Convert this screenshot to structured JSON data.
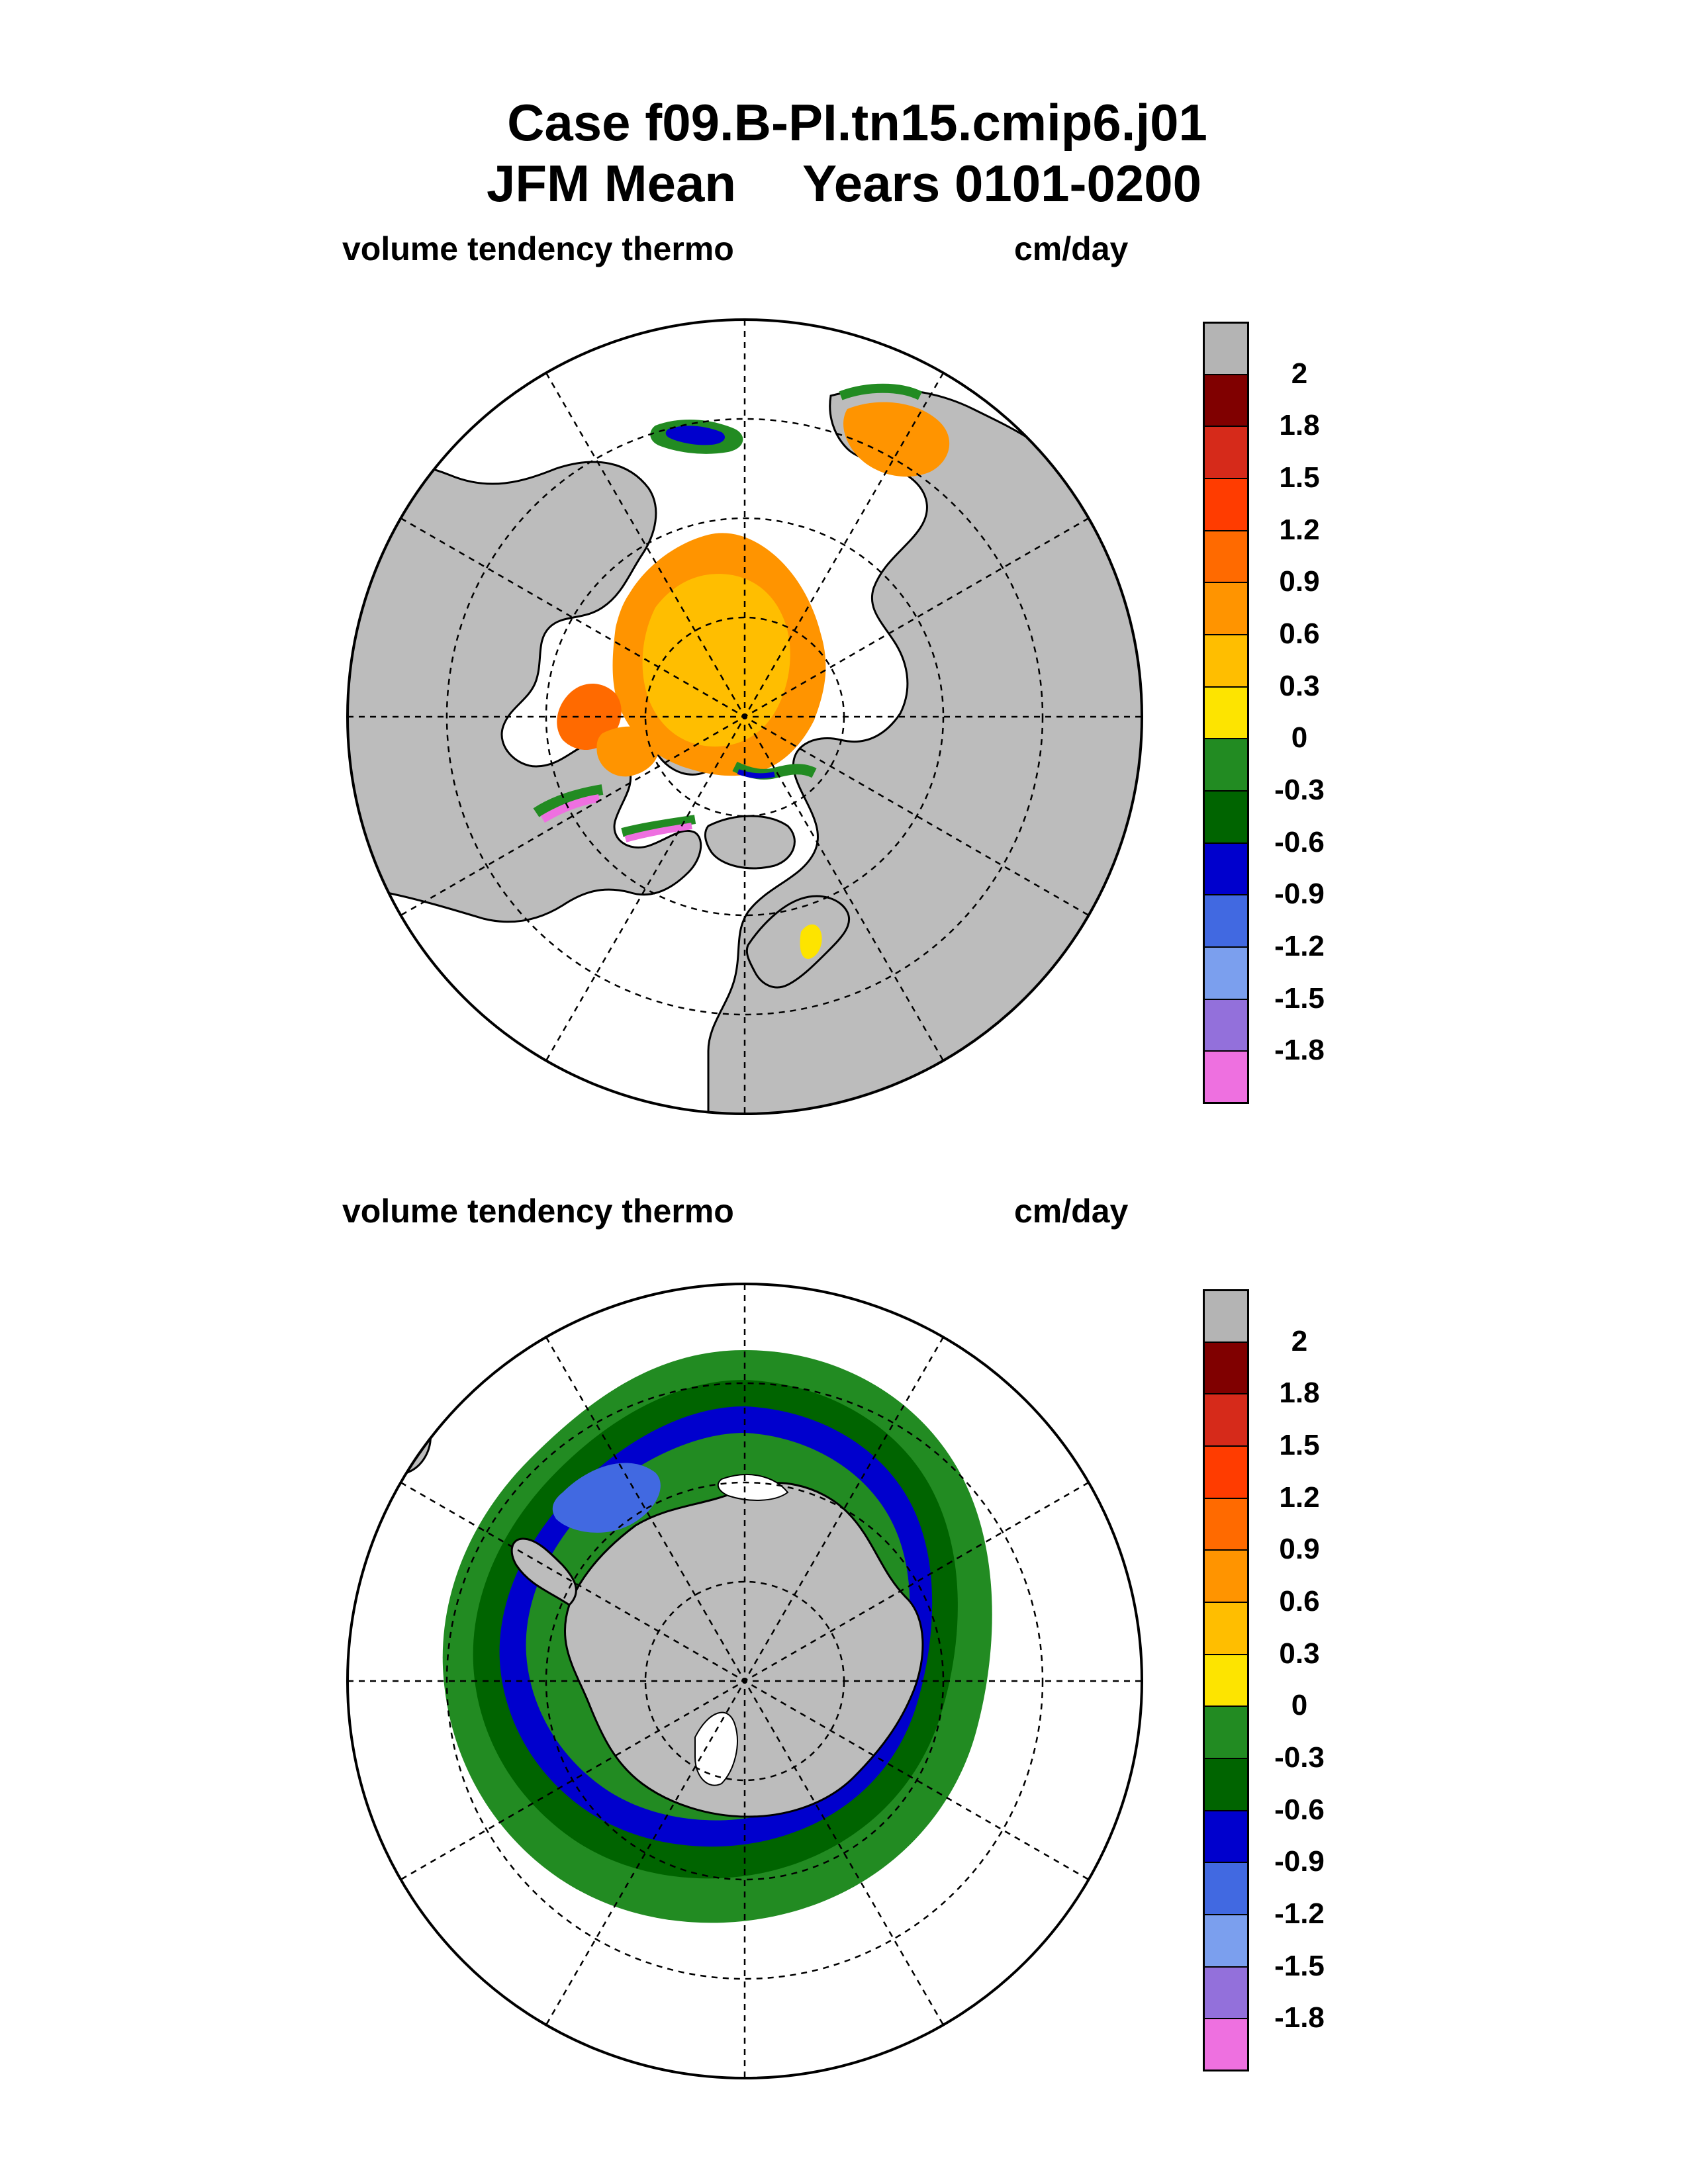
{
  "figure": {
    "title_line1": "Case f09.B-PI.tn15.cmip6.j01",
    "title_line2_left": "JFM Mean",
    "title_line2_right": "Years 0101-0200"
  },
  "panels": [
    {
      "id": "north",
      "left_label": "volume tendency thermo",
      "right_label": "cm/day"
    },
    {
      "id": "south",
      "left_label": "volume tendency thermo",
      "right_label": "cm/day"
    }
  ],
  "colorbar": {
    "labels": [
      "2",
      "1.8",
      "1.5",
      "1.2",
      "0.9",
      "0.6",
      "0.3",
      "0",
      "-0.3",
      "-0.6",
      "-0.9",
      "-1.2",
      "-1.5",
      "-1.8"
    ],
    "colors": [
      "#b4b4b4",
      "#800000",
      "#d62a1a",
      "#ff3c00",
      "#ff6a00",
      "#ff9400",
      "#ffbe00",
      "#fde400",
      "#228b22",
      "#006400",
      "#0000cd",
      "#4169e1",
      "#7b9fee",
      "#9370db",
      "#ee70e0"
    ]
  },
  "map_colors": {
    "land": "#bcbcbc",
    "ocean": "#ffffff",
    "coast": "#000000",
    "grid": "#000000"
  }
}
